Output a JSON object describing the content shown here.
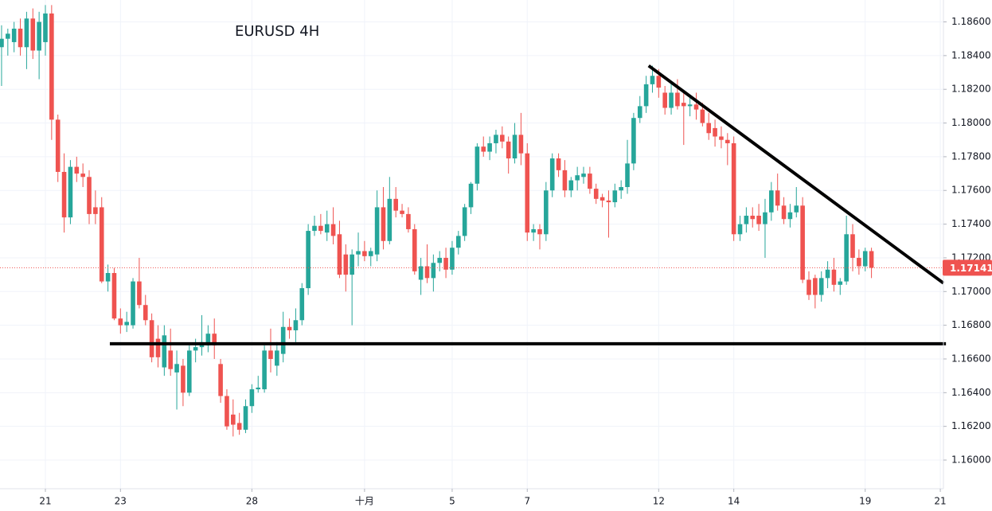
{
  "chart_data": {
    "type": "candlestick",
    "title": "EURUSD 4H",
    "up_color": "#26a69a",
    "down_color": "#ef5350",
    "grid": true,
    "xlim": [
      -0.25,
      150.5
    ],
    "ylim": [
      1.1583,
      1.1873
    ],
    "xticks": [
      {
        "value": 7,
        "label": "21"
      },
      {
        "value": 19,
        "label": "23"
      },
      {
        "value": 40,
        "label": "28"
      },
      {
        "value": 58,
        "label": "十月"
      },
      {
        "value": 72,
        "label": "5"
      },
      {
        "value": 84,
        "label": "7"
      },
      {
        "value": 105,
        "label": "12"
      },
      {
        "value": 117,
        "label": "14"
      },
      {
        "value": 138,
        "label": "19"
      },
      {
        "value": 150,
        "label": "21"
      }
    ],
    "yticks": [
      {
        "value": 1.16,
        "label": "1.16000"
      },
      {
        "value": 1.162,
        "label": "1.16200"
      },
      {
        "value": 1.164,
        "label": "1.16400"
      },
      {
        "value": 1.166,
        "label": "1.16600"
      },
      {
        "value": 1.168,
        "label": "1.16800"
      },
      {
        "value": 1.17,
        "label": "1.17000"
      },
      {
        "value": 1.172,
        "label": "1.17200"
      },
      {
        "value": 1.174,
        "label": "1.17400"
      },
      {
        "value": 1.176,
        "label": "1.17600"
      },
      {
        "value": 1.178,
        "label": "1.17800"
      },
      {
        "value": 1.18,
        "label": "1.18000"
      },
      {
        "value": 1.182,
        "label": "1.18200"
      },
      {
        "value": 1.184,
        "label": "1.18400"
      },
      {
        "value": 1.186,
        "label": "1.18600"
      }
    ],
    "last_price": 1.17141,
    "trendlines": [
      {
        "x": [
          17.3,
          150.9
        ],
        "y": [
          1.1669,
          1.1669
        ]
      },
      {
        "x": [
          103.4,
          150.5
        ],
        "y": [
          1.1834,
          1.1705
        ]
      }
    ],
    "candles": [
      [
        1.1845,
        1.1858,
        1.1822,
        1.185
      ],
      [
        1.185,
        1.1856,
        1.184,
        1.1853
      ],
      [
        1.1848,
        1.186,
        1.1842,
        1.1856
      ],
      [
        1.1856,
        1.1862,
        1.184,
        1.1845
      ],
      [
        1.1845,
        1.1866,
        1.1832,
        1.1862
      ],
      [
        1.1862,
        1.1868,
        1.1838,
        1.1843
      ],
      [
        1.1843,
        1.1866,
        1.1826,
        1.186
      ],
      [
        1.1848,
        1.187,
        1.184,
        1.1865
      ],
      [
        1.1865,
        1.187,
        1.179,
        1.1802
      ],
      [
        1.1802,
        1.1805,
        1.1765,
        1.1771
      ],
      [
        1.1771,
        1.1782,
        1.1735,
        1.1744
      ],
      [
        1.1744,
        1.1778,
        1.174,
        1.1774
      ],
      [
        1.1774,
        1.178,
        1.1765,
        1.177
      ],
      [
        1.177,
        1.1776,
        1.1762,
        1.1768
      ],
      [
        1.1768,
        1.1772,
        1.174,
        1.1746
      ],
      [
        1.175,
        1.176,
        1.174,
        1.1746
      ],
      [
        1.175,
        1.1756,
        1.1705,
        1.1706
      ],
      [
        1.1706,
        1.1716,
        1.17,
        1.1711
      ],
      [
        1.1711,
        1.1714,
        1.1683,
        1.1684
      ],
      [
        1.1684,
        1.169,
        1.1675,
        1.168
      ],
      [
        1.168,
        1.1688,
        1.1676,
        1.1682
      ],
      [
        1.168,
        1.1708,
        1.1678,
        1.1706
      ],
      [
        1.1706,
        1.172,
        1.169,
        1.1692
      ],
      [
        1.1692,
        1.1698,
        1.168,
        1.1683
      ],
      [
        1.1683,
        1.1687,
        1.1658,
        1.1661
      ],
      [
        1.1672,
        1.168,
        1.1655,
        1.1661
      ],
      [
        1.1655,
        1.168,
        1.165,
        1.1674
      ],
      [
        1.1665,
        1.1678,
        1.165,
        1.1654
      ],
      [
        1.1652,
        1.1665,
        1.163,
        1.1657
      ],
      [
        1.1656,
        1.166,
        1.1632,
        1.164
      ],
      [
        1.164,
        1.1668,
        1.1638,
        1.1665
      ],
      [
        1.1665,
        1.1672,
        1.1658,
        1.1667
      ],
      [
        1.1667,
        1.1686,
        1.1662,
        1.167
      ],
      [
        1.1668,
        1.168,
        1.1664,
        1.1675
      ],
      [
        1.1675,
        1.1684,
        1.166,
        1.1668
      ],
      [
        1.1657,
        1.166,
        1.1634,
        1.1638
      ],
      [
        1.1638,
        1.1642,
        1.1618,
        1.162
      ],
      [
        1.1627,
        1.1636,
        1.1614,
        1.1621
      ],
      [
        1.1622,
        1.1628,
        1.1615,
        1.1618
      ],
      [
        1.1618,
        1.1636,
        1.1616,
        1.1632
      ],
      [
        1.1632,
        1.1645,
        1.1628,
        1.1642
      ],
      [
        1.1642,
        1.165,
        1.164,
        1.1643
      ],
      [
        1.1642,
        1.1668,
        1.164,
        1.1665
      ],
      [
        1.1665,
        1.1678,
        1.1652,
        1.166
      ],
      [
        1.1656,
        1.167,
        1.165,
        1.1665
      ],
      [
        1.1663,
        1.1688,
        1.1658,
        1.1679
      ],
      [
        1.1679,
        1.1684,
        1.1672,
        1.1677
      ],
      [
        1.1677,
        1.169,
        1.167,
        1.1683
      ],
      [
        1.1683,
        1.1705,
        1.168,
        1.1702
      ],
      [
        1.1702,
        1.174,
        1.1698,
        1.1736
      ],
      [
        1.1736,
        1.1745,
        1.1733,
        1.1739
      ],
      [
        1.1739,
        1.1746,
        1.1734,
        1.1736
      ],
      [
        1.1735,
        1.1748,
        1.173,
        1.174
      ],
      [
        1.174,
        1.175,
        1.1728,
        1.1733
      ],
      [
        1.1734,
        1.1742,
        1.1708,
        1.171
      ],
      [
        1.1722,
        1.1728,
        1.17,
        1.171
      ],
      [
        1.171,
        1.1725,
        1.168,
        1.1722
      ],
      [
        1.1722,
        1.1735,
        1.1715,
        1.1724
      ],
      [
        1.1724,
        1.173,
        1.1718,
        1.1721
      ],
      [
        1.1721,
        1.1726,
        1.1715,
        1.1724
      ],
      [
        1.1722,
        1.176,
        1.1718,
        1.175
      ],
      [
        1.175,
        1.1762,
        1.1725,
        1.173
      ],
      [
        1.173,
        1.1768,
        1.1728,
        1.1755
      ],
      [
        1.1755,
        1.1762,
        1.1744,
        1.1748
      ],
      [
        1.1748,
        1.1752,
        1.1744,
        1.1746
      ],
      [
        1.1746,
        1.175,
        1.1735,
        1.1737
      ],
      [
        1.1737,
        1.174,
        1.171,
        1.1712
      ],
      [
        1.1707,
        1.172,
        1.1698,
        1.1715
      ],
      [
        1.1715,
        1.1728,
        1.1705,
        1.1708
      ],
      [
        1.1708,
        1.1722,
        1.17,
        1.1717
      ],
      [
        1.1717,
        1.1724,
        1.1712,
        1.172
      ],
      [
        1.172,
        1.1726,
        1.1708,
        1.1713
      ],
      [
        1.1713,
        1.173,
        1.171,
        1.1726
      ],
      [
        1.1726,
        1.1736,
        1.1722,
        1.1733
      ],
      [
        1.1733,
        1.1752,
        1.173,
        1.175
      ],
      [
        1.175,
        1.1765,
        1.1746,
        1.1764
      ],
      [
        1.1764,
        1.1788,
        1.176,
        1.1786
      ],
      [
        1.1786,
        1.1792,
        1.178,
        1.1783
      ],
      [
        1.1783,
        1.1792,
        1.1778,
        1.1788
      ],
      [
        1.1788,
        1.1796,
        1.1782,
        1.1793
      ],
      [
        1.1793,
        1.1798,
        1.1785,
        1.1789
      ],
      [
        1.1789,
        1.1792,
        1.177,
        1.1779
      ],
      [
        1.1779,
        1.18,
        1.1776,
        1.1793
      ],
      [
        1.1793,
        1.1806,
        1.1775,
        1.1782
      ],
      [
        1.1782,
        1.1788,
        1.173,
        1.1735
      ],
      [
        1.1735,
        1.174,
        1.173,
        1.1737
      ],
      [
        1.1737,
        1.174,
        1.1725,
        1.1734
      ],
      [
        1.1734,
        1.1765,
        1.173,
        1.176
      ],
      [
        1.176,
        1.1782,
        1.1756,
        1.1779
      ],
      [
        1.1779,
        1.1782,
        1.1768,
        1.1772
      ],
      [
        1.1772,
        1.1778,
        1.1756,
        1.176
      ],
      [
        1.176,
        1.1768,
        1.1756,
        1.1766
      ],
      [
        1.1766,
        1.1774,
        1.176,
        1.1769
      ],
      [
        1.1768,
        1.1774,
        1.1764,
        1.177
      ],
      [
        1.177,
        1.1774,
        1.1758,
        1.1761
      ],
      [
        1.1761,
        1.1764,
        1.1752,
        1.1755
      ],
      [
        1.1756,
        1.1758,
        1.175,
        1.1754
      ],
      [
        1.1754,
        1.176,
        1.1732,
        1.1753
      ],
      [
        1.1753,
        1.1764,
        1.175,
        1.176
      ],
      [
        1.176,
        1.1766,
        1.1755,
        1.1762
      ],
      [
        1.1762,
        1.179,
        1.1758,
        1.1776
      ],
      [
        1.1776,
        1.1806,
        1.1772,
        1.1803
      ],
      [
        1.1803,
        1.1816,
        1.18,
        1.181
      ],
      [
        1.181,
        1.1828,
        1.1806,
        1.1823
      ],
      [
        1.1823,
        1.1834,
        1.1818,
        1.1828
      ],
      [
        1.1828,
        1.1832,
        1.1815,
        1.1821
      ],
      [
        1.1818,
        1.1822,
        1.1805,
        1.1809
      ],
      [
        1.1809,
        1.1825,
        1.1805,
        1.1818
      ],
      [
        1.1818,
        1.1826,
        1.1808,
        1.181
      ],
      [
        1.1812,
        1.1818,
        1.1787,
        1.181
      ],
      [
        1.181,
        1.1815,
        1.1804,
        1.1811
      ],
      [
        1.1811,
        1.1818,
        1.1802,
        1.1808
      ],
      [
        1.1808,
        1.1812,
        1.1798,
        1.18
      ],
      [
        1.18,
        1.1806,
        1.179,
        1.1794
      ],
      [
        1.1797,
        1.1802,
        1.1786,
        1.1792
      ],
      [
        1.1792,
        1.1798,
        1.1785,
        1.179
      ],
      [
        1.179,
        1.1794,
        1.1775,
        1.1788
      ],
      [
        1.1788,
        1.1792,
        1.173,
        1.1734
      ],
      [
        1.1734,
        1.1745,
        1.173,
        1.174
      ],
      [
        1.174,
        1.175,
        1.1735,
        1.1745
      ],
      [
        1.1745,
        1.175,
        1.1738,
        1.1743
      ],
      [
        1.1745,
        1.1752,
        1.1736,
        1.174
      ],
      [
        1.174,
        1.1755,
        1.172,
        1.1747
      ],
      [
        1.1747,
        1.1765,
        1.1742,
        1.176
      ],
      [
        1.176,
        1.177,
        1.1748,
        1.1751
      ],
      [
        1.1751,
        1.1756,
        1.174,
        1.1743
      ],
      [
        1.1743,
        1.1752,
        1.1738,
        1.1747
      ],
      [
        1.1747,
        1.1762,
        1.1744,
        1.1751
      ],
      [
        1.1751,
        1.1756,
        1.1705,
        1.1707
      ],
      [
        1.1707,
        1.1712,
        1.1695,
        1.1698
      ],
      [
        1.1708,
        1.171,
        1.169,
        1.1698
      ],
      [
        1.1698,
        1.1712,
        1.1694,
        1.1708
      ],
      [
        1.1708,
        1.1718,
        1.1702,
        1.1713
      ],
      [
        1.1713,
        1.172,
        1.17,
        1.1704
      ],
      [
        1.1704,
        1.1708,
        1.1698,
        1.1706
      ],
      [
        1.1706,
        1.1745,
        1.1704,
        1.1734
      ],
      [
        1.1734,
        1.174,
        1.1712,
        1.172
      ],
      [
        1.172,
        1.1725,
        1.171,
        1.1715
      ],
      [
        1.1715,
        1.1726,
        1.1712,
        1.1724
      ],
      [
        1.1724,
        1.1726,
        1.1708,
        1.17141
      ]
    ]
  }
}
